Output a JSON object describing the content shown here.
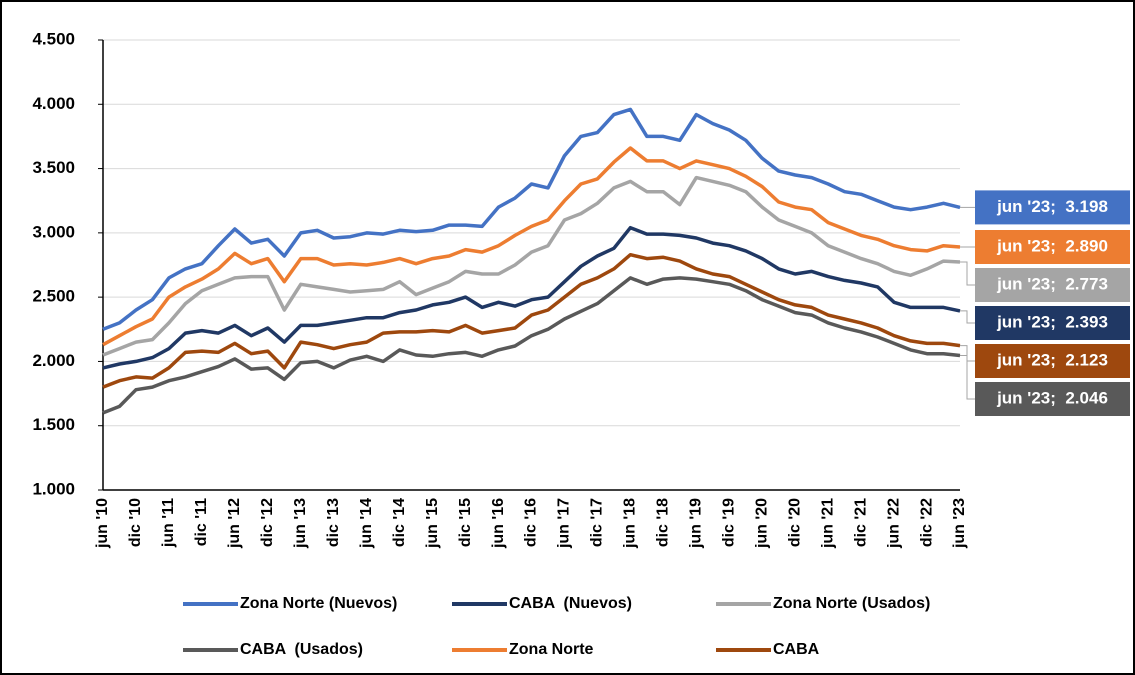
{
  "chart_data": {
    "type": "line",
    "categories": [
      "jun '10",
      null,
      "dic '10",
      null,
      "jun '11",
      null,
      "dic '11",
      null,
      "jun '12",
      null,
      "dic '12",
      null,
      "jun '13",
      null,
      "dic '13",
      null,
      "jun '14",
      null,
      "dic '14",
      null,
      "jun '15",
      null,
      "dic '15",
      null,
      "jun '16",
      null,
      "dic '16",
      null,
      "jun '17",
      null,
      "dic '17",
      null,
      "jun '18",
      null,
      "dic '18",
      null,
      "jun '19",
      null,
      "dic '19",
      null,
      "jun '20",
      null,
      "dic '20",
      null,
      "jun '21",
      null,
      "dic '21",
      null,
      "jun '22",
      null,
      "dic '22",
      null,
      "jun '23"
    ],
    "series": [
      {
        "name": "Zona Norte (Nuevos)",
        "color": "#4472c4",
        "values": [
          2250,
          2300,
          2400,
          2480,
          2650,
          2720,
          2760,
          2900,
          3030,
          2920,
          2950,
          2820,
          3000,
          3020,
          2960,
          2970,
          3000,
          2990,
          3020,
          3010,
          3020,
          3060,
          3060,
          3050,
          3200,
          3270,
          3380,
          3350,
          3600,
          3750,
          3780,
          3920,
          3960,
          3750,
          3750,
          3720,
          3920,
          3850,
          3800,
          3720,
          3580,
          3480,
          3450,
          3430,
          3380,
          3320,
          3300,
          3250,
          3200,
          3180,
          3200,
          3230,
          3198
        ],
        "value_labels": [
          null,
          null,
          null,
          null,
          null,
          null,
          null,
          null,
          null,
          null,
          null,
          null,
          null,
          null,
          null,
          null,
          null,
          null,
          null,
          null,
          null,
          null,
          null,
          null,
          null,
          null,
          null,
          null,
          null,
          null,
          null,
          null,
          null,
          null,
          null,
          null,
          null,
          null,
          null,
          null,
          null,
          null,
          null,
          null,
          null,
          null,
          null,
          null,
          null,
          null,
          null,
          null,
          "jun '23;  3.198"
        ]
      },
      {
        "name": "CABA  (Nuevos)",
        "color": "#203864",
        "values": [
          1950,
          1980,
          2000,
          2030,
          2100,
          2220,
          2240,
          2220,
          2280,
          2200,
          2260,
          2150,
          2280,
          2280,
          2300,
          2320,
          2340,
          2340,
          2380,
          2400,
          2440,
          2460,
          2500,
          2420,
          2460,
          2430,
          2480,
          2500,
          2620,
          2740,
          2820,
          2880,
          3040,
          2990,
          2990,
          2980,
          2960,
          2920,
          2900,
          2860,
          2800,
          2720,
          2680,
          2700,
          2660,
          2630,
          2610,
          2580,
          2460,
          2420,
          2420,
          2420,
          2393
        ],
        "value_labels": [
          null,
          null,
          null,
          null,
          null,
          null,
          null,
          null,
          null,
          null,
          null,
          null,
          null,
          null,
          null,
          null,
          null,
          null,
          null,
          null,
          null,
          null,
          null,
          null,
          null,
          null,
          null,
          null,
          null,
          null,
          null,
          null,
          null,
          null,
          null,
          null,
          null,
          null,
          null,
          null,
          null,
          null,
          null,
          null,
          null,
          null,
          null,
          null,
          null,
          null,
          null,
          null,
          "jun '23;  2.393"
        ]
      },
      {
        "name": "Zona Norte (Usados)",
        "color": "#a5a5a5",
        "values": [
          2050,
          2100,
          2150,
          2170,
          2300,
          2450,
          2550,
          2600,
          2650,
          2660,
          2660,
          2400,
          2600,
          2580,
          2560,
          2540,
          2550,
          2560,
          2620,
          2520,
          2570,
          2620,
          2700,
          2680,
          2680,
          2750,
          2850,
          2900,
          3100,
          3150,
          3230,
          3350,
          3400,
          3320,
          3320,
          3220,
          3430,
          3400,
          3370,
          3320,
          3200,
          3100,
          3050,
          3000,
          2900,
          2850,
          2800,
          2760,
          2700,
          2670,
          2720,
          2780,
          2773
        ],
        "value_labels": [
          null,
          null,
          null,
          null,
          null,
          null,
          null,
          null,
          null,
          null,
          null,
          null,
          null,
          null,
          null,
          null,
          null,
          null,
          null,
          null,
          null,
          null,
          null,
          null,
          null,
          null,
          null,
          null,
          null,
          null,
          null,
          null,
          null,
          null,
          null,
          null,
          null,
          null,
          null,
          null,
          null,
          null,
          null,
          null,
          null,
          null,
          null,
          null,
          null,
          null,
          null,
          null,
          "jun '23;  2.773"
        ]
      },
      {
        "name": "CABA  (Usados)",
        "color": "#595959",
        "values": [
          1600,
          1650,
          1780,
          1800,
          1850,
          1880,
          1920,
          1960,
          2020,
          1940,
          1950,
          1860,
          1990,
          2000,
          1950,
          2010,
          2040,
          2000,
          2090,
          2050,
          2040,
          2060,
          2070,
          2040,
          2090,
          2120,
          2200,
          2250,
          2330,
          2390,
          2450,
          2550,
          2650,
          2600,
          2640,
          2650,
          2640,
          2620,
          2600,
          2550,
          2480,
          2430,
          2380,
          2360,
          2300,
          2260,
          2230,
          2190,
          2140,
          2090,
          2060,
          2060,
          2046
        ],
        "value_labels": [
          null,
          null,
          null,
          null,
          null,
          null,
          null,
          null,
          null,
          null,
          null,
          null,
          null,
          null,
          null,
          null,
          null,
          null,
          null,
          null,
          null,
          null,
          null,
          null,
          null,
          null,
          null,
          null,
          null,
          null,
          null,
          null,
          null,
          null,
          null,
          null,
          null,
          null,
          null,
          null,
          null,
          null,
          null,
          null,
          null,
          null,
          null,
          null,
          null,
          null,
          null,
          null,
          "jun '23;  2.046"
        ]
      },
      {
        "name": "Zona Norte",
        "color": "#ed7d31",
        "values": [
          2130,
          2200,
          2270,
          2330,
          2500,
          2580,
          2640,
          2720,
          2840,
          2760,
          2800,
          2620,
          2800,
          2800,
          2750,
          2760,
          2750,
          2770,
          2800,
          2760,
          2800,
          2820,
          2870,
          2850,
          2900,
          2980,
          3050,
          3100,
          3250,
          3380,
          3420,
          3550,
          3660,
          3560,
          3560,
          3500,
          3560,
          3530,
          3500,
          3440,
          3360,
          3240,
          3200,
          3180,
          3080,
          3030,
          2980,
          2950,
          2900,
          2870,
          2860,
          2900,
          2890
        ],
        "value_labels": [
          null,
          null,
          null,
          null,
          null,
          null,
          null,
          null,
          null,
          null,
          null,
          null,
          null,
          null,
          null,
          null,
          null,
          null,
          null,
          null,
          null,
          null,
          null,
          null,
          null,
          null,
          null,
          null,
          null,
          null,
          null,
          null,
          null,
          null,
          null,
          null,
          null,
          null,
          null,
          null,
          null,
          null,
          null,
          null,
          null,
          null,
          null,
          null,
          null,
          null,
          null,
          null,
          "jun '23;  2.890"
        ]
      },
      {
        "name": "CABA",
        "color": "#9e480e",
        "values": [
          1800,
          1850,
          1880,
          1870,
          1950,
          2070,
          2080,
          2070,
          2140,
          2060,
          2080,
          1950,
          2150,
          2130,
          2100,
          2130,
          2150,
          2220,
          2230,
          2230,
          2240,
          2230,
          2280,
          2220,
          2240,
          2260,
          2360,
          2400,
          2500,
          2600,
          2650,
          2720,
          2830,
          2800,
          2810,
          2780,
          2720,
          2680,
          2660,
          2600,
          2540,
          2480,
          2440,
          2420,
          2360,
          2330,
          2300,
          2260,
          2200,
          2160,
          2140,
          2140,
          2123
        ],
        "value_labels": [
          null,
          null,
          null,
          null,
          null,
          null,
          null,
          null,
          null,
          null,
          null,
          null,
          null,
          null,
          null,
          null,
          null,
          null,
          null,
          null,
          null,
          null,
          null,
          null,
          null,
          null,
          null,
          null,
          null,
          null,
          null,
          null,
          null,
          null,
          null,
          null,
          null,
          null,
          null,
          null,
          null,
          null,
          null,
          null,
          null,
          null,
          null,
          null,
          null,
          null,
          null,
          null,
          "jun '23;  2.123"
        ]
      }
    ],
    "ylim": [
      1000,
      4500
    ],
    "yticks": [
      {
        "value": 1000,
        "label": "1.000"
      },
      {
        "value": 1500,
        "label": "1.500"
      },
      {
        "value": 2000,
        "label": "2.000"
      },
      {
        "value": 2500,
        "label": "2.500"
      },
      {
        "value": 3000,
        "label": "3.000"
      },
      {
        "value": 3500,
        "label": "3.500"
      },
      {
        "value": 4000,
        "label": "4.000"
      },
      {
        "value": 4500,
        "label": "4.500"
      }
    ],
    "grid": true,
    "legend": "bottom"
  }
}
